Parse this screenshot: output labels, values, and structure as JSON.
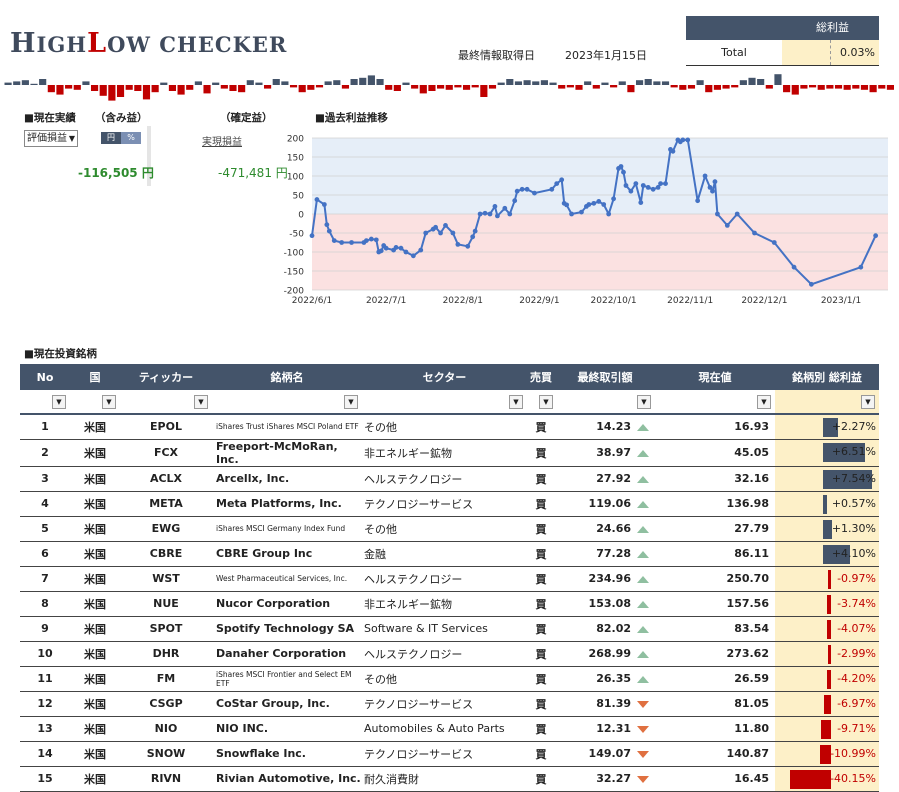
{
  "app": {
    "logo_h": "H",
    "logo_igh": "IGH",
    "logo_l": "L",
    "logo_ow": "OW",
    "logo_checker": " CHECKER"
  },
  "header": {
    "date_label": "最終情報取得日",
    "date_value": "2023年1月15日"
  },
  "total": {
    "header": "総利益",
    "label": "Total",
    "value": "0.03%"
  },
  "sparkline": {
    "values": [
      0.2,
      0.3,
      0.4,
      0.1,
      0.5,
      -0.6,
      -0.8,
      -0.3,
      -0.4,
      0.3,
      -0.5,
      -0.9,
      -1.3,
      -1.0,
      -0.4,
      -0.5,
      -1.2,
      -0.6,
      0.2,
      -0.5,
      -0.8,
      -0.4,
      0.3,
      -0.7,
      0.2,
      -0.3,
      -0.5,
      -0.6,
      0.4,
      0.2,
      -0.3,
      0.5,
      0.3,
      -0.2,
      -0.6,
      -0.4,
      -0.2,
      0.3,
      0.4,
      -0.3,
      0.5,
      0.6,
      0.8,
      0.5,
      -0.4,
      -0.5,
      0.2,
      -0.3,
      -0.7,
      -0.5,
      -0.3,
      -0.4,
      -0.2,
      -0.4,
      -0.2,
      -1.0,
      -0.3,
      0.2,
      0.5,
      0.3,
      0.4,
      0.3,
      0.4,
      0.2,
      -0.3,
      -0.2,
      -0.4,
      0.3,
      -0.3,
      0.2,
      -0.2,
      0.3,
      -0.6,
      0.4,
      0.5,
      0.3,
      0.3,
      -0.2,
      -0.4,
      -0.3,
      0.4,
      -0.6,
      -0.4,
      -0.3,
      -0.2,
      0.4,
      0.6,
      0.5,
      -0.3,
      0.9,
      -0.6,
      -0.8,
      -0.3,
      -0.2,
      -0.4,
      -0.3,
      -0.3,
      -0.4,
      -0.3,
      -0.4,
      -0.6,
      -0.3,
      -0.4
    ],
    "pos_color": "#44546a",
    "neg_color": "#c00000"
  },
  "summary": {
    "title": "■現在実績",
    "unrealized_label": "（含み益）",
    "realized_label": "（確定益）",
    "dropdown_value": "評価損益",
    "toggle_yen": "円",
    "toggle_pct": "%",
    "realized_link": "実現損益",
    "unrealized_value": "-116,505 円",
    "realized_value": "-471,481 円"
  },
  "history": {
    "title": "■過去利益推移"
  },
  "chart_data": {
    "type": "line",
    "title": "",
    "xlabel": "",
    "ylabel": "",
    "ylim": [
      -200,
      200
    ],
    "yticks": [
      200,
      150,
      100,
      50,
      0,
      -50,
      -100,
      -150,
      -200
    ],
    "xlim": [
      "2022-06-01",
      "2023-01-20"
    ],
    "xticks": [
      "2022/6/1",
      "2022/7/1",
      "2022/8/1",
      "2022/9/1",
      "2022/10/1",
      "2022/11/1",
      "2022/12/1",
      "2023/1/1"
    ],
    "positive_band_color": "#e6eef8",
    "negative_band_color": "#fbe1e1",
    "line_color": "#4472c4",
    "points": [
      [
        "2022-06-01",
        -57
      ],
      [
        "2022-06-03",
        38
      ],
      [
        "2022-06-06",
        25
      ],
      [
        "2022-06-07",
        -28
      ],
      [
        "2022-06-08",
        -45
      ],
      [
        "2022-06-10",
        -70
      ],
      [
        "2022-06-13",
        -75
      ],
      [
        "2022-06-17",
        -75
      ],
      [
        "2022-06-22",
        -75
      ],
      [
        "2022-06-23",
        -70
      ],
      [
        "2022-06-25",
        -66
      ],
      [
        "2022-06-27",
        -68
      ],
      [
        "2022-06-28",
        -100
      ],
      [
        "2022-06-29",
        -97
      ],
      [
        "2022-06-30",
        -83
      ],
      [
        "2022-07-01",
        -90
      ],
      [
        "2022-07-04",
        -95
      ],
      [
        "2022-07-05",
        -88
      ],
      [
        "2022-07-07",
        -90
      ],
      [
        "2022-07-09",
        -100
      ],
      [
        "2022-07-12",
        -110
      ],
      [
        "2022-07-15",
        -95
      ],
      [
        "2022-07-17",
        -50
      ],
      [
        "2022-07-20",
        -40
      ],
      [
        "2022-07-21",
        -35
      ],
      [
        "2022-07-23",
        -50
      ],
      [
        "2022-07-25",
        -30
      ],
      [
        "2022-07-28",
        -50
      ],
      [
        "2022-07-30",
        -80
      ],
      [
        "2022-08-03",
        -85
      ],
      [
        "2022-08-05",
        -60
      ],
      [
        "2022-08-06",
        -45
      ],
      [
        "2022-08-08",
        0
      ],
      [
        "2022-08-10",
        2
      ],
      [
        "2022-08-12",
        0
      ],
      [
        "2022-08-14",
        20
      ],
      [
        "2022-08-15",
        -5
      ],
      [
        "2022-08-18",
        15
      ],
      [
        "2022-08-20",
        0
      ],
      [
        "2022-08-22",
        35
      ],
      [
        "2022-08-23",
        60
      ],
      [
        "2022-08-25",
        65
      ],
      [
        "2022-08-27",
        65
      ],
      [
        "2022-08-30",
        55
      ],
      [
        "2022-09-06",
        65
      ],
      [
        "2022-09-08",
        80
      ],
      [
        "2022-09-10",
        90
      ],
      [
        "2022-09-11",
        28
      ],
      [
        "2022-09-12",
        24
      ],
      [
        "2022-09-14",
        0
      ],
      [
        "2022-09-18",
        5
      ],
      [
        "2022-09-20",
        20
      ],
      [
        "2022-09-21",
        25
      ],
      [
        "2022-09-23",
        28
      ],
      [
        "2022-09-25",
        33
      ],
      [
        "2022-09-27",
        25
      ],
      [
        "2022-09-29",
        0
      ],
      [
        "2022-10-01",
        40
      ],
      [
        "2022-10-03",
        120
      ],
      [
        "2022-10-04",
        125
      ],
      [
        "2022-10-05",
        110
      ],
      [
        "2022-10-06",
        75
      ],
      [
        "2022-10-08",
        60
      ],
      [
        "2022-10-10",
        80
      ],
      [
        "2022-10-12",
        30
      ],
      [
        "2022-10-13",
        75
      ],
      [
        "2022-10-15",
        70
      ],
      [
        "2022-10-17",
        65
      ],
      [
        "2022-10-19",
        70
      ],
      [
        "2022-10-20",
        80
      ],
      [
        "2022-10-22",
        80
      ],
      [
        "2022-10-24",
        170
      ],
      [
        "2022-10-25",
        165
      ],
      [
        "2022-10-27",
        195
      ],
      [
        "2022-10-28",
        190
      ],
      [
        "2022-10-29",
        195
      ],
      [
        "2022-10-31",
        195
      ],
      [
        "2022-11-04",
        35
      ],
      [
        "2022-11-07",
        100
      ],
      [
        "2022-11-09",
        70
      ],
      [
        "2022-11-10",
        60
      ],
      [
        "2022-11-11",
        85
      ],
      [
        "2022-11-12",
        0
      ],
      [
        "2022-11-16",
        -30
      ],
      [
        "2022-11-20",
        0
      ],
      [
        "2022-11-27",
        -50
      ],
      [
        "2022-12-05",
        -75
      ],
      [
        "2022-12-13",
        -140
      ],
      [
        "2022-12-20",
        -185
      ],
      [
        "2023-01-09",
        -140
      ],
      [
        "2023-01-15",
        -57
      ]
    ]
  },
  "holdings": {
    "title": "■現在投資銘柄",
    "headers": {
      "no": "No",
      "country": "国",
      "ticker": "ティッカー",
      "name": "銘柄名",
      "sector": "セクター",
      "buysell": "売買",
      "last": "最終取引額",
      "current": "現在値",
      "pl": "銘柄別 総利益"
    },
    "rows": [
      {
        "no": "1",
        "country": "米国",
        "ticker": "EPOL",
        "name": "iShares Trust iShares MSCI Poland ETF",
        "small": true,
        "sector": "その他",
        "bs": "買",
        "last": "14.23",
        "dir": "up",
        "cur": "16.93",
        "pl": 2.27,
        "pl_text": "+2.27%"
      },
      {
        "no": "2",
        "country": "米国",
        "ticker": "FCX",
        "name": "Freeport-McMoRan, Inc.",
        "small": false,
        "sector": "非エネルギー鉱物",
        "bs": "買",
        "last": "38.97",
        "dir": "up",
        "cur": "45.05",
        "pl": 6.51,
        "pl_text": "+6.51%"
      },
      {
        "no": "3",
        "country": "米国",
        "ticker": "ACLX",
        "name": "Arcellx, Inc.",
        "small": false,
        "sector": "ヘルステクノロジー",
        "bs": "買",
        "last": "27.92",
        "dir": "up",
        "cur": "32.16",
        "pl": 7.54,
        "pl_text": "+7.54%"
      },
      {
        "no": "4",
        "country": "米国",
        "ticker": "META",
        "name": "Meta Platforms, Inc.",
        "small": false,
        "sector": "テクノロジーサービス",
        "bs": "買",
        "last": "119.06",
        "dir": "up",
        "cur": "136.98",
        "pl": 0.57,
        "pl_text": "+0.57%"
      },
      {
        "no": "5",
        "country": "米国",
        "ticker": "EWG",
        "name": "iShares MSCI Germany Index Fund",
        "small": true,
        "sector": "その他",
        "bs": "買",
        "last": "24.66",
        "dir": "up",
        "cur": "27.79",
        "pl": 1.3,
        "pl_text": "+1.30%"
      },
      {
        "no": "6",
        "country": "米国",
        "ticker": "CBRE",
        "name": "CBRE Group Inc",
        "small": false,
        "sector": "金融",
        "bs": "買",
        "last": "77.28",
        "dir": "up",
        "cur": "86.11",
        "pl": 4.1,
        "pl_text": "+4.10%"
      },
      {
        "no": "7",
        "country": "米国",
        "ticker": "WST",
        "name": "West Pharmaceutical Services, Inc.",
        "small": true,
        "sector": "ヘルステクノロジー",
        "bs": "買",
        "last": "234.96",
        "dir": "up",
        "cur": "250.70",
        "pl": -0.97,
        "pl_text": "-0.97%"
      },
      {
        "no": "8",
        "country": "米国",
        "ticker": "NUE",
        "name": "Nucor Corporation",
        "small": false,
        "sector": "非エネルギー鉱物",
        "bs": "買",
        "last": "153.08",
        "dir": "up",
        "cur": "157.56",
        "pl": -3.74,
        "pl_text": "-3.74%"
      },
      {
        "no": "9",
        "country": "米国",
        "ticker": "SPOT",
        "name": "Spotify Technology SA",
        "small": false,
        "sector": "Software & IT Services",
        "bs": "買",
        "last": "82.02",
        "dir": "up",
        "cur": "83.54",
        "pl": -4.07,
        "pl_text": "-4.07%"
      },
      {
        "no": "10",
        "country": "米国",
        "ticker": "DHR",
        "name": "Danaher Corporation",
        "small": false,
        "sector": "ヘルステクノロジー",
        "bs": "買",
        "last": "268.99",
        "dir": "up",
        "cur": "273.62",
        "pl": -2.99,
        "pl_text": "-2.99%"
      },
      {
        "no": "11",
        "country": "米国",
        "ticker": "FM",
        "name": "iShares MSCI Frontier and Select EM ETF",
        "small": true,
        "sector": "その他",
        "bs": "買",
        "last": "26.35",
        "dir": "up",
        "cur": "26.59",
        "pl": -4.2,
        "pl_text": "-4.20%"
      },
      {
        "no": "12",
        "country": "米国",
        "ticker": "CSGP",
        "name": "CoStar Group, Inc.",
        "small": false,
        "sector": "テクノロジーサービス",
        "bs": "買",
        "last": "81.39",
        "dir": "down",
        "cur": "81.05",
        "pl": -6.97,
        "pl_text": "-6.97%"
      },
      {
        "no": "13",
        "country": "米国",
        "ticker": "NIO",
        "name": "NIO INC.",
        "small": false,
        "sector": "Automobiles & Auto Parts",
        "bs": "買",
        "last": "12.31",
        "dir": "down",
        "cur": "11.80",
        "pl": -9.71,
        "pl_text": "-9.71%"
      },
      {
        "no": "14",
        "country": "米国",
        "ticker": "SNOW",
        "name": "Snowflake Inc.",
        "small": false,
        "sector": "テクノロジーサービス",
        "bs": "買",
        "last": "149.07",
        "dir": "down",
        "cur": "140.87",
        "pl": -10.99,
        "pl_text": "-10.99%"
      },
      {
        "no": "15",
        "country": "米国",
        "ticker": "RIVN",
        "name": "Rivian Automotive, Inc.",
        "small": false,
        "sector": "耐久消費財",
        "bs": "買",
        "last": "32.27",
        "dir": "down",
        "cur": "16.45",
        "pl": -40.15,
        "pl_text": "-40.15%"
      }
    ]
  }
}
